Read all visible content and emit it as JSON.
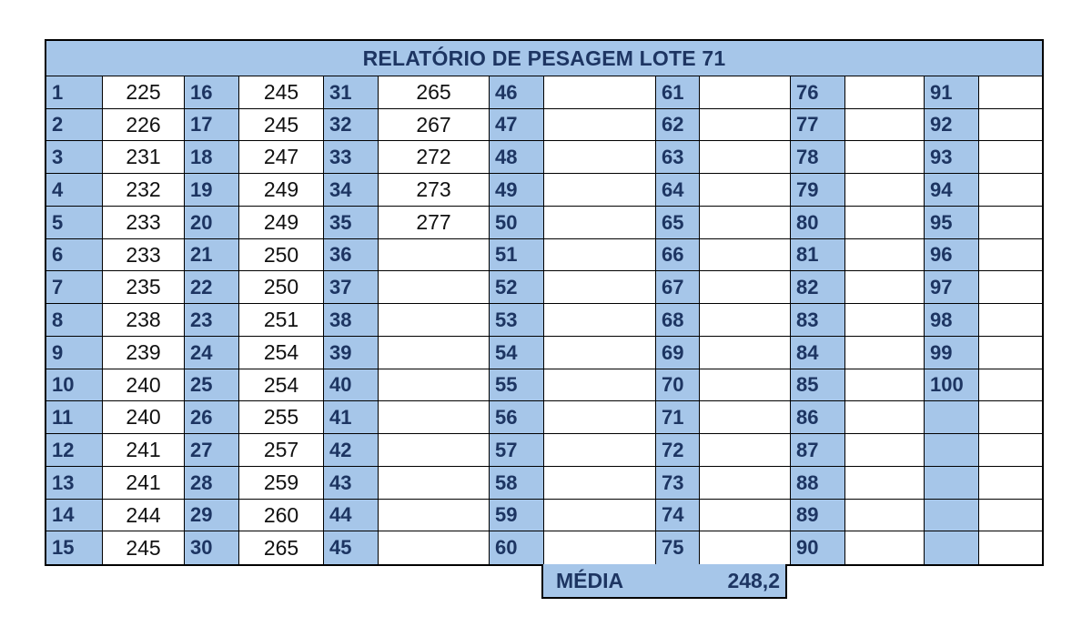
{
  "title": "RELATÓRIO DE PESAGEM LOTE 71",
  "groups": [
    {
      "values": [
        "225",
        "226",
        "231",
        "232",
        "233",
        "233",
        "235",
        "238",
        "239",
        "240",
        "240",
        "241",
        "241",
        "244",
        "245"
      ]
    },
    {
      "values": [
        "245",
        "245",
        "247",
        "249",
        "249",
        "250",
        "250",
        "251",
        "254",
        "254",
        "255",
        "257",
        "259",
        "260",
        "265"
      ]
    },
    {
      "values": [
        "265",
        "267",
        "272",
        "273",
        "277",
        "",
        "",
        "",
        "",
        "",
        "",
        "",
        "",
        "",
        ""
      ]
    },
    {
      "values": [
        "",
        "",
        "",
        "",
        "",
        "",
        "",
        "",
        "",
        "",
        "",
        "",
        "",
        "",
        ""
      ]
    },
    {
      "values": [
        "",
        "",
        "",
        "",
        "",
        "",
        "",
        "",
        "",
        "",
        "",
        "",
        "",
        "",
        ""
      ]
    },
    {
      "values": [
        "",
        "",
        "",
        "",
        "",
        "",
        "",
        "",
        "",
        "",
        "",
        "",
        "",
        "",
        ""
      ]
    },
    {
      "values": [
        "",
        "",
        "",
        "",
        "",
        "",
        "",
        "",
        "",
        "",
        "",
        "",
        "",
        "",
        ""
      ]
    }
  ],
  "media": {
    "label": "MÉDIA",
    "value": "248,2"
  },
  "colors": {
    "header_fill": "#a6c6e9",
    "header_text": "#1d3562",
    "border": "#000000"
  }
}
